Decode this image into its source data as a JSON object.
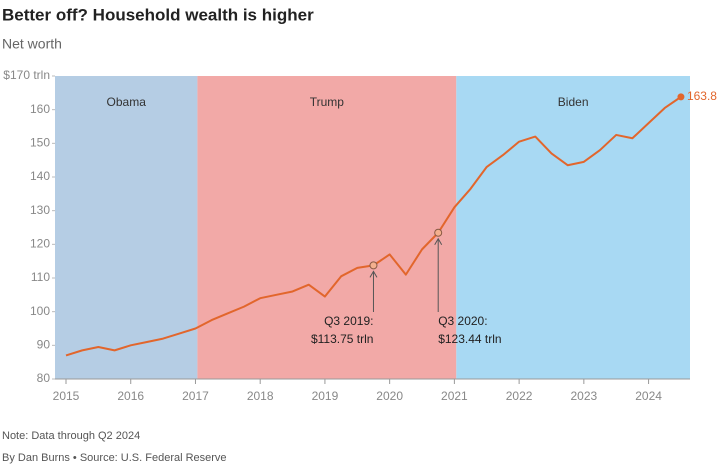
{
  "chart_data": {
    "type": "line",
    "title": "Better off? Household wealth is higher",
    "subtitle": "Net worth",
    "x": [
      2015.0,
      2015.25,
      2015.5,
      2015.75,
      2016.0,
      2016.25,
      2016.5,
      2016.75,
      2017.0,
      2017.25,
      2017.5,
      2017.75,
      2018.0,
      2018.25,
      2018.5,
      2018.75,
      2019.0,
      2019.25,
      2019.5,
      2019.75,
      2020.0,
      2020.25,
      2020.5,
      2020.75,
      2021.0,
      2021.25,
      2021.5,
      2021.75,
      2022.0,
      2022.25,
      2022.5,
      2022.75,
      2023.0,
      2023.25,
      2023.5,
      2023.75,
      2024.0,
      2024.25,
      2024.5
    ],
    "series": [
      {
        "name": "Net worth",
        "color": "#e2662c",
        "values": [
          87,
          88.5,
          89.5,
          88.5,
          90,
          91,
          92,
          93.5,
          95,
          97.5,
          99.5,
          101.5,
          104,
          105,
          106,
          108,
          104.5,
          110.5,
          113,
          113.75,
          117,
          111,
          118.5,
          123.44,
          131,
          136.5,
          143,
          146.5,
          150.5,
          152,
          147,
          143.5,
          144.5,
          148,
          152.5,
          151.5,
          156,
          160.5,
          163.8
        ]
      }
    ],
    "xlim": [
      2014.83,
      2024.64
    ],
    "xticks": [
      2015,
      2016,
      2017,
      2018,
      2019,
      2020,
      2021,
      2022,
      2023,
      2024
    ],
    "ylim": [
      80,
      170
    ],
    "yticks": [
      80,
      90,
      100,
      110,
      120,
      130,
      140,
      150,
      160,
      {
        "value": 170,
        "label": "$170 trln"
      }
    ],
    "grid": false,
    "period_breaks": [
      2017.03,
      2021.03
    ],
    "periods": [
      {
        "name": "Obama",
        "color": "#b5cde4"
      },
      {
        "name": "Trump",
        "color": "#f2a9a7"
      },
      {
        "name": "Biden",
        "color": "#a8d9f3"
      }
    ],
    "annotations": [
      {
        "lines": [
          "Q3 2019:",
          "$113.75 trln"
        ]
      },
      {
        "lines": [
          "Q3 2020:",
          "$123.44 trln"
        ]
      }
    ],
    "note": "Note: Data through Q2 2024",
    "source": "By Dan Burns • Source: U.S. Federal Reserve"
  }
}
